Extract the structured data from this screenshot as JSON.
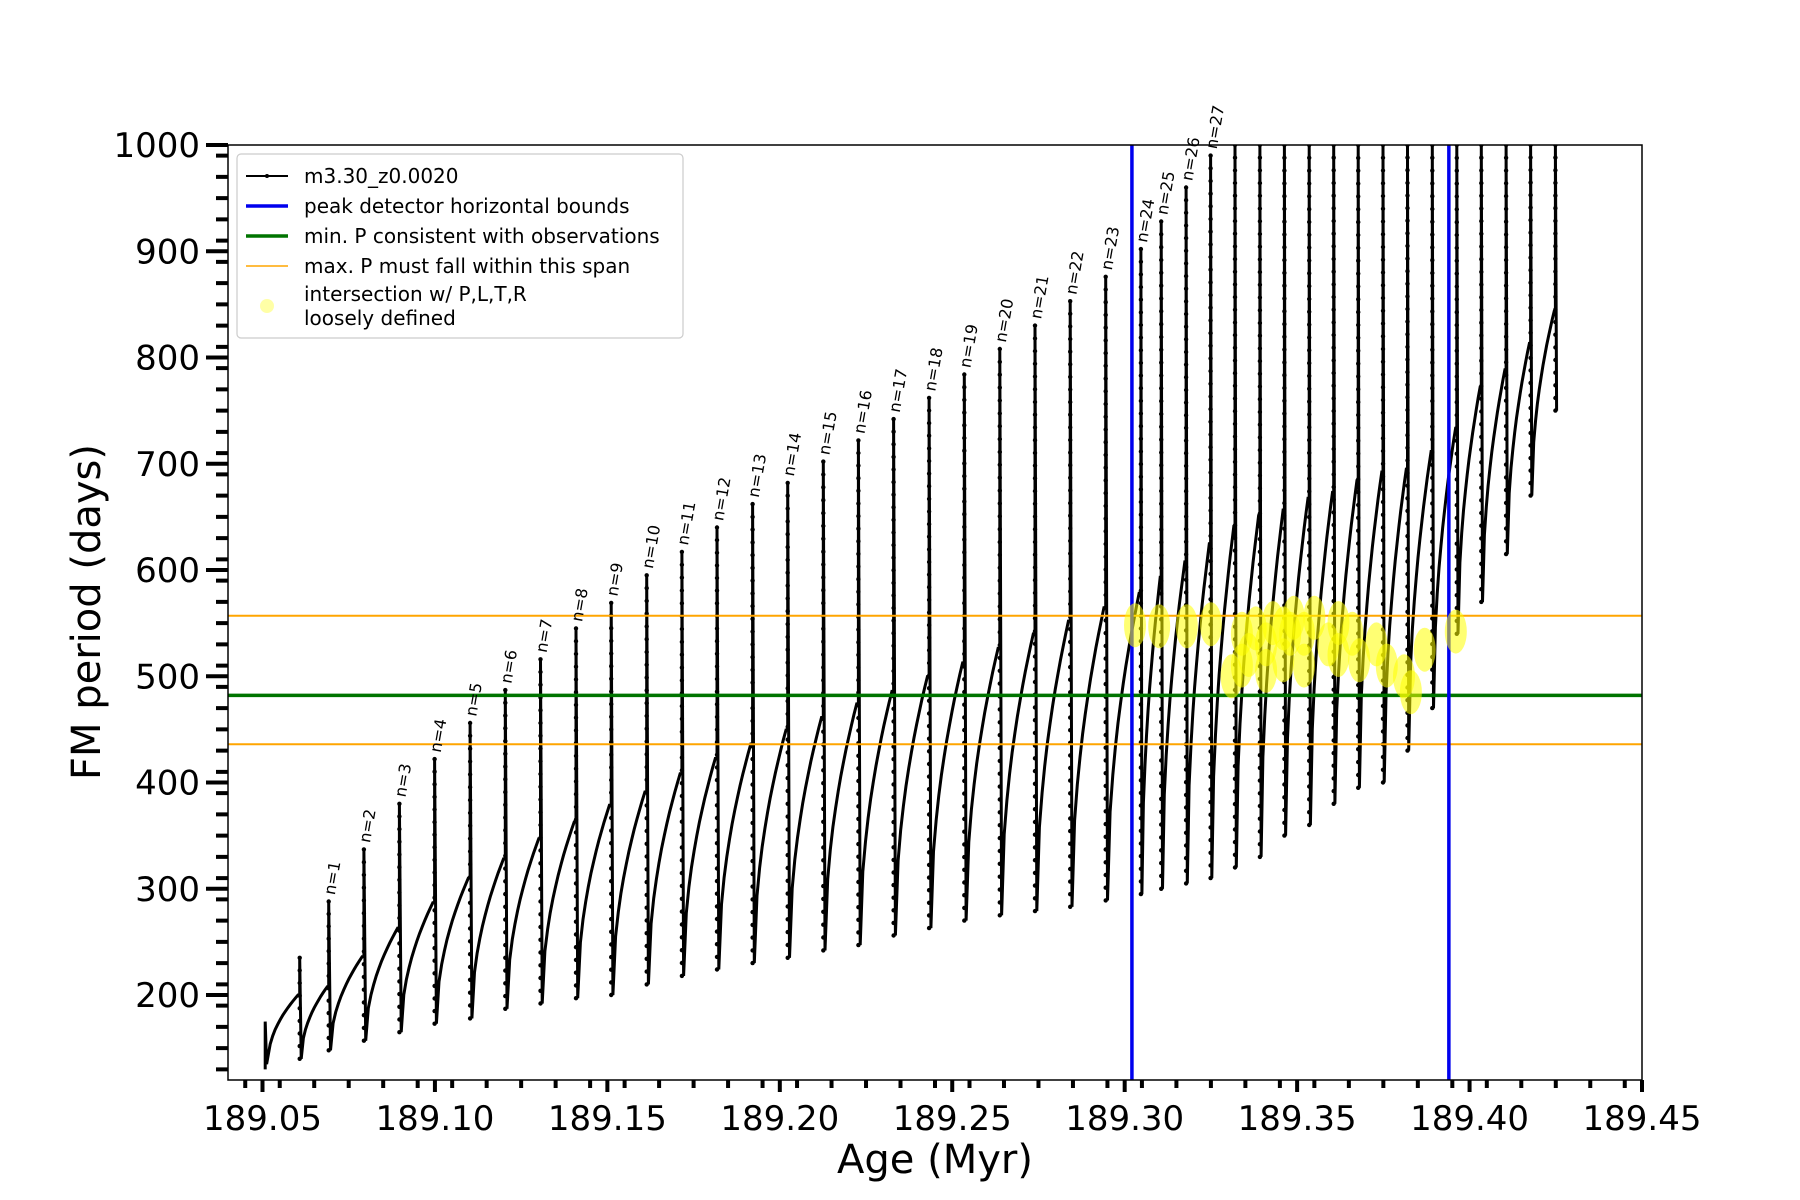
{
  "chart_data": {
    "type": "line",
    "title": "",
    "xlabel": "Age (Myr)",
    "ylabel": "FM period (days)",
    "xlim": [
      189.04,
      189.45
    ],
    "ylim": [
      120,
      1000
    ],
    "x_ticks": [
      "189.05",
      "189.10",
      "189.15",
      "189.20",
      "189.25",
      "189.30",
      "189.35",
      "189.40",
      "189.45"
    ],
    "y_ticks": [
      "200",
      "300",
      "400",
      "500",
      "600",
      "700",
      "800",
      "900",
      "1000"
    ],
    "legend_position": "upper-left",
    "series": [
      {
        "name": "m3.30_z0.0020",
        "color": "#000000",
        "style": "line-with-dots",
        "pulse_ages": [
          189.0608,
          189.0692,
          189.0794,
          189.0897,
          189.0999,
          189.1102,
          189.1204,
          189.1306,
          189.1409,
          189.1511,
          189.1614,
          189.1716,
          189.1818,
          189.1921,
          189.2023,
          189.2126,
          189.2228,
          189.233,
          189.2433,
          189.2535,
          189.2638,
          189.274,
          189.2842,
          189.2945,
          189.3047,
          189.3106,
          189.3178,
          189.3249,
          189.332,
          189.3392,
          189.3463,
          189.3535,
          189.3606,
          189.3677,
          189.3749,
          189.382,
          189.3892,
          189.3963,
          189.4034,
          189.4106,
          189.4177,
          189.4249
        ],
        "pulse_peaks": [
          235,
          288,
          337,
          380,
          422,
          456,
          487,
          516,
          545,
          569,
          595,
          617,
          640,
          662,
          682,
          702,
          722,
          742,
          762,
          784,
          808,
          830,
          853,
          876,
          902,
          928,
          960,
          990,
          1000,
          1000,
          1000,
          1000,
          1000,
          1000,
          1000,
          1000,
          1000,
          1000,
          1000,
          1000,
          1000,
          1000
        ],
        "pulse_minima": [
          140,
          148,
          157,
          165,
          173,
          178,
          187,
          192,
          197,
          200,
          210,
          218,
          224,
          230,
          235,
          242,
          247,
          256,
          263,
          270,
          275,
          279,
          283,
          289,
          295,
          300,
          305,
          310,
          320,
          330,
          350,
          360,
          380,
          395,
          400,
          430,
          470,
          540,
          570,
          615,
          670,
          750
        ]
      },
      {
        "name": "peak detector horizontal bounds",
        "color": "#0000ee",
        "orientation": "vertical",
        "x": [
          189.3021,
          189.394
        ]
      },
      {
        "name": "min. P consistent with observations",
        "color": "#007400",
        "orientation": "horizontal",
        "y": 482
      },
      {
        "name": "max. P must fall within this span",
        "color": "#ffa500",
        "orientation": "horizontal",
        "y": [
          436,
          557
        ]
      },
      {
        "name": "intersection w/ P,L,T,R\nloosely defined",
        "color": "#ffff00",
        "style": "markers",
        "points": [
          [
            189.331,
            500
          ],
          [
            189.334,
            510
          ],
          [
            189.334,
            540
          ],
          [
            189.336,
            520
          ],
          [
            189.338,
            545
          ],
          [
            189.341,
            505
          ],
          [
            189.341,
            530
          ],
          [
            189.343,
            550
          ],
          [
            189.346,
            515
          ],
          [
            189.346,
            545
          ],
          [
            189.348,
            540
          ],
          [
            189.349,
            555
          ],
          [
            189.352,
            510
          ],
          [
            189.352,
            540
          ],
          [
            189.355,
            555
          ],
          [
            189.359,
            530
          ],
          [
            189.362,
            520
          ],
          [
            189.362,
            550
          ],
          [
            189.366,
            540
          ],
          [
            189.368,
            515
          ],
          [
            189.373,
            530
          ],
          [
            189.376,
            510
          ],
          [
            189.381,
            500
          ],
          [
            189.383,
            485
          ],
          [
            189.387,
            525
          ],
          [
            189.303,
            548
          ],
          [
            189.31,
            547
          ],
          [
            189.318,
            547
          ],
          [
            189.325,
            549
          ],
          [
            189.396,
            542
          ]
        ]
      }
    ],
    "annotations": [
      "n=1",
      "n=2",
      "n=3",
      "n=4",
      "n=5",
      "n=6",
      "n=7",
      "n=8",
      "n=9",
      "n=10",
      "n=11",
      "n=12",
      "n=13",
      "n=14",
      "n=15",
      "n=16",
      "n=17",
      "n=18",
      "n=19",
      "n=20",
      "n=21",
      "n=22",
      "n=23",
      "n=24",
      "n=25",
      "n=26",
      "n=27"
    ]
  }
}
